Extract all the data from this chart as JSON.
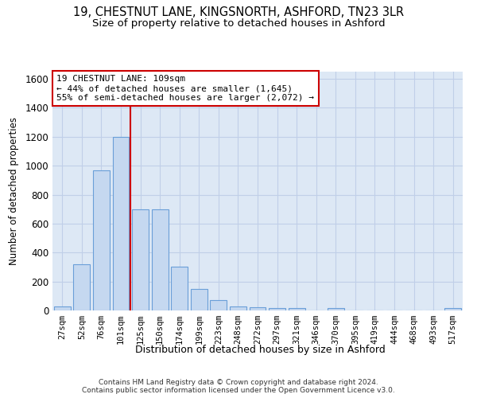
{
  "title_line1": "19, CHESTNUT LANE, KINGSNORTH, ASHFORD, TN23 3LR",
  "title_line2": "Size of property relative to detached houses in Ashford",
  "xlabel": "Distribution of detached houses by size in Ashford",
  "ylabel": "Number of detached properties",
  "bar_labels": [
    "27sqm",
    "52sqm",
    "76sqm",
    "101sqm",
    "125sqm",
    "150sqm",
    "174sqm",
    "199sqm",
    "223sqm",
    "248sqm",
    "272sqm",
    "297sqm",
    "321sqm",
    "346sqm",
    "370sqm",
    "395sqm",
    "419sqm",
    "444sqm",
    "468sqm",
    "493sqm",
    "517sqm"
  ],
  "bar_values": [
    25,
    320,
    970,
    1200,
    700,
    700,
    300,
    150,
    70,
    25,
    20,
    15,
    15,
    0,
    15,
    0,
    0,
    0,
    0,
    0,
    15
  ],
  "bar_color": "#c5d8f0",
  "bar_edge_color": "#6a9fd8",
  "vline_index": 3.5,
  "vline_color": "#cc0000",
  "annotation_text": "19 CHESTNUT LANE: 109sqm\n← 44% of detached houses are smaller (1,645)\n55% of semi-detached houses are larger (2,072) →",
  "annotation_box_edge_color": "#cc0000",
  "annotation_bg_color": "white",
  "ylim": [
    0,
    1650
  ],
  "yticks": [
    0,
    200,
    400,
    600,
    800,
    1000,
    1200,
    1400,
    1600
  ],
  "background_color": "#dde8f5",
  "grid_color": "#c0cfe8",
  "footer": "Contains HM Land Registry data © Crown copyright and database right 2024.\nContains public sector information licensed under the Open Government Licence v3.0.",
  "title_fontsize": 10.5,
  "subtitle_fontsize": 9.5,
  "annotation_fontsize": 8
}
